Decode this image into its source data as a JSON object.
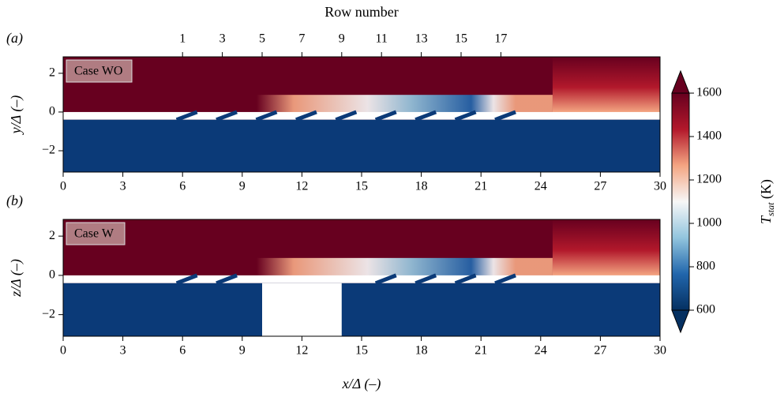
{
  "chart_data": [
    {
      "type": "field",
      "panel_label": "(a)",
      "annotation": "Case WO",
      "top_axis_label": "Row number",
      "top_xticks": [
        {
          "value": 6,
          "label": "1"
        },
        {
          "value": 8,
          "label": "3"
        },
        {
          "value": 10,
          "label": "5"
        },
        {
          "value": 12,
          "label": "7"
        },
        {
          "value": 14,
          "label": "9"
        },
        {
          "value": 16,
          "label": "11"
        },
        {
          "value": 18,
          "label": "13"
        },
        {
          "value": 20,
          "label": "15"
        },
        {
          "value": 22,
          "label": "17"
        }
      ],
      "xlim": [
        0,
        30
      ],
      "xticks": [
        0,
        3,
        6,
        9,
        12,
        15,
        18,
        21,
        24,
        27,
        30
      ],
      "ylim": [
        -3.1,
        2.85
      ],
      "yticks": [
        {
          "value": -2,
          "label": "−2"
        },
        0,
        2
      ],
      "ylabel": "y/Δ (–)"
    },
    {
      "type": "field",
      "panel_label": "(b)",
      "annotation": "Case W",
      "xlim": [
        0,
        30
      ],
      "xticks": [
        0,
        3,
        6,
        9,
        12,
        15,
        18,
        21,
        24,
        27,
        30
      ],
      "ylim": [
        -3.1,
        2.85
      ],
      "yticks": [
        {
          "value": -2,
          "label": "−2"
        },
        0,
        2
      ],
      "ylabel": "z/Δ (–)",
      "xlabel": "x/Δ (–)"
    },
    {
      "type": "colorbar",
      "label": "T",
      "label_sub": "stat",
      "label_unit": "(K)",
      "lim": [
        600,
        1600
      ],
      "ticks": [
        600,
        800,
        1000,
        1200,
        1400,
        1600
      ],
      "colormap": [
        "#053061",
        "#2166ac",
        "#92c5de",
        "#f7f7f7",
        "#f4a582",
        "#b2182b",
        "#67001f"
      ]
    }
  ]
}
